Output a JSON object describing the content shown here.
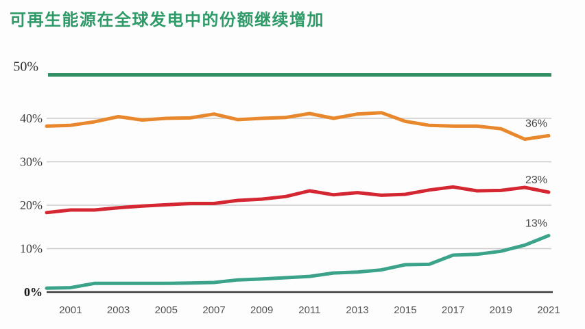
{
  "chart_data": {
    "type": "line",
    "title": "可再生能源在全球发电中的份额继续增加",
    "title_color": "#2d9a67",
    "xlabel": "",
    "ylabel": "",
    "ylim": [
      0,
      50
    ],
    "grid": true,
    "legend_position": "none",
    "x": [
      2000,
      2001,
      2002,
      2003,
      2004,
      2005,
      2006,
      2007,
      2008,
      2009,
      2010,
      2011,
      2012,
      2013,
      2014,
      2015,
      2016,
      2017,
      2018,
      2019,
      2020,
      2021
    ],
    "x_tick_labels": [
      "2001",
      "2003",
      "2005",
      "2007",
      "2009",
      "2011",
      "2013",
      "2015",
      "2017",
      "2019",
      "2021"
    ],
    "y_tick_labels": [
      "0%",
      "10%",
      "20%",
      "30%",
      "40%",
      "50%"
    ],
    "reference_line": {
      "value": 50,
      "color": "#2e8f62",
      "label": "50%"
    },
    "axis_colors": {
      "gridline": "#cccccc",
      "x_axis": "#3b3b3b"
    },
    "series": [
      {
        "name": "orange-series",
        "color": "#e8872b",
        "end_label": "36%",
        "values": [
          38.2,
          38.4,
          39.2,
          40.4,
          39.6,
          40.0,
          40.1,
          41.0,
          39.7,
          40.0,
          40.2,
          41.1,
          40.0,
          41.0,
          41.3,
          39.3,
          38.4,
          38.2,
          38.2,
          37.6,
          35.2,
          36.0
        ]
      },
      {
        "name": "red-series",
        "color": "#d42731",
        "end_label": "23%",
        "values": [
          18.3,
          18.9,
          18.9,
          19.4,
          19.8,
          20.1,
          20.4,
          20.4,
          21.1,
          21.4,
          22.0,
          23.3,
          22.4,
          22.9,
          22.3,
          22.5,
          23.5,
          24.2,
          23.3,
          23.4,
          24.1,
          23.0
        ]
      },
      {
        "name": "teal-series",
        "color": "#3ba389",
        "end_label": "13%",
        "values": [
          0.9,
          1.0,
          2.0,
          2.0,
          2.0,
          2.0,
          2.1,
          2.2,
          2.8,
          3.0,
          3.3,
          3.6,
          4.4,
          4.6,
          5.1,
          6.3,
          6.4,
          8.5,
          8.7,
          9.4,
          10.8,
          13.0
        ]
      }
    ]
  }
}
